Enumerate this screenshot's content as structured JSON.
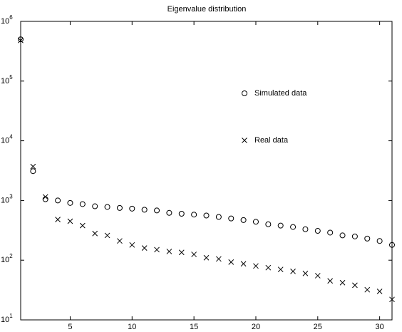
{
  "chart_data": {
    "type": "scatter",
    "title": "Eigenvalue distribution",
    "x": [
      1,
      2,
      3,
      4,
      5,
      6,
      7,
      8,
      9,
      10,
      11,
      12,
      13,
      14,
      15,
      16,
      17,
      18,
      19,
      20,
      21,
      22,
      23,
      24,
      25,
      26,
      27,
      28,
      29,
      30,
      31
    ],
    "series": [
      {
        "name": "Simulated data",
        "color": "#000000",
        "marker": "o",
        "values": [
          500000,
          3100,
          1050,
          1000,
          910,
          870,
          800,
          780,
          750,
          730,
          700,
          680,
          620,
          600,
          580,
          560,
          530,
          500,
          470,
          440,
          400,
          380,
          360,
          330,
          310,
          290,
          260,
          250,
          230,
          210,
          180
        ]
      },
      {
        "name": "Real data",
        "color": "#000000",
        "marker": "x",
        "values": [
          480000,
          3700,
          1150,
          480,
          450,
          380,
          280,
          260,
          210,
          180,
          160,
          150,
          140,
          135,
          125,
          110,
          105,
          93,
          87,
          80,
          75,
          70,
          65,
          60,
          55,
          45,
          42,
          38,
          32,
          30,
          22
        ]
      }
    ],
    "xlim": [
      1,
      31
    ],
    "xticks": [
      5,
      10,
      15,
      20,
      25,
      30
    ],
    "ylim": [
      10,
      1000000
    ],
    "log_y": true,
    "yticks": [
      {
        "value": 10,
        "label": "10",
        "exponent": "1"
      },
      {
        "value": 100,
        "label": "10",
        "exponent": "2"
      },
      {
        "value": 1000,
        "label": "10",
        "exponent": "3"
      },
      {
        "value": 10000,
        "label": "10",
        "exponent": "4"
      },
      {
        "value": 100000,
        "label": "10",
        "exponent": "5"
      },
      {
        "value": 1000000,
        "label": "10",
        "exponent": "6"
      }
    ],
    "grid": false
  }
}
